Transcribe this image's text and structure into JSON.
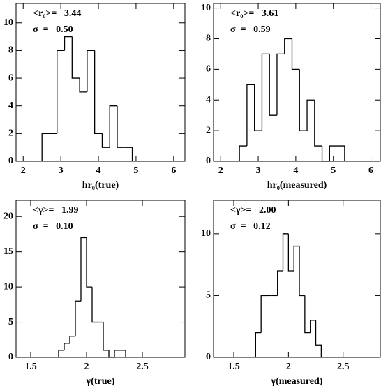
{
  "chart_data": [
    {
      "type": "histogram",
      "xlabel": "hr₀(true)",
      "color": "#000000",
      "annotations": [
        "<r₀>=   3.44",
        "σ  =   0.50"
      ],
      "bins": [
        2.5,
        2.7,
        2.9,
        3.1,
        3.3,
        3.5,
        3.7,
        3.9,
        4.1,
        4.3,
        4.5,
        4.7,
        4.9
      ],
      "values": [
        2,
        2,
        8,
        9,
        6,
        5,
        8,
        2,
        1,
        4,
        1,
        1
      ],
      "xlim": [
        1.81,
        6.3
      ],
      "ylim": [
        0,
        11.4
      ],
      "xticks": [
        2,
        3,
        4,
        5,
        6
      ],
      "yticks": [
        0,
        2,
        4,
        6,
        8,
        10
      ]
    },
    {
      "type": "histogram",
      "xlabel": "hr₀(measured)",
      "color": "#000000",
      "annotations": [
        "<r₀>=   3.61",
        "σ  =   0.59"
      ],
      "bins": [
        2.5,
        2.7,
        2.9,
        3.1,
        3.3,
        3.5,
        3.7,
        3.9,
        4.1,
        4.3,
        4.5,
        4.7,
        4.9,
        5.1,
        5.3
      ],
      "values": [
        1,
        5,
        2,
        7,
        3,
        7,
        8,
        6,
        2,
        4,
        1,
        0,
        1,
        1
      ],
      "xlim": [
        1.81,
        6.25
      ],
      "ylim": [
        0,
        10.3
      ],
      "xticks": [
        2,
        3,
        4,
        5,
        6
      ],
      "yticks": [
        0,
        2,
        4,
        6,
        8,
        10
      ]
    },
    {
      "type": "histogram",
      "xlabel": "γ(true)",
      "color": "#000000",
      "annotations": [
        "<γ>=   1.99",
        "σ  =   0.10"
      ],
      "bins": [
        1.75,
        1.8,
        1.85,
        1.9,
        1.95,
        2.0,
        2.05,
        2.1,
        2.15,
        2.2,
        2.25,
        2.3,
        2.35
      ],
      "values": [
        1,
        2,
        3,
        8,
        17,
        10,
        5,
        5,
        1,
        0,
        1,
        1
      ],
      "xlim": [
        1.369,
        2.881
      ],
      "ylim": [
        0,
        22.3
      ],
      "xticks": [
        1.5,
        2,
        2.5
      ],
      "yticks": [
        0,
        5,
        10,
        15,
        20
      ]
    },
    {
      "type": "histogram",
      "xlabel": "γ(measured)",
      "color": "#000000",
      "annotations": [
        "<γ>=   2.00",
        "σ  =   0.12"
      ],
      "bins": [
        1.7,
        1.75,
        1.8,
        1.85,
        1.9,
        1.95,
        2.0,
        2.05,
        2.1,
        2.15,
        2.2,
        2.25,
        2.3
      ],
      "values": [
        2,
        5,
        5,
        5,
        7,
        10,
        7,
        9,
        5,
        2,
        3,
        1
      ],
      "xlim": [
        1.315,
        2.84
      ],
      "ylim": [
        0,
        12.7
      ],
      "xticks": [
        1.5,
        2,
        2.5
      ],
      "yticks": [
        0,
        5,
        10
      ]
    }
  ]
}
